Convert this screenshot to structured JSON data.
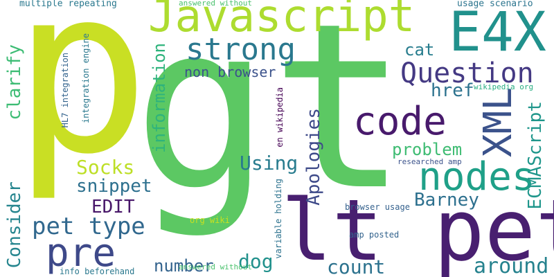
{
  "cloud": {
    "words": [
      {
        "text": "p",
        "color": "#c9df24"
      },
      {
        "text": "gt",
        "color": "#5cc863"
      },
      {
        "text": "lt pet",
        "color": "#481f70"
      },
      {
        "text": "Javascript",
        "color": "#addc30"
      },
      {
        "text": "E4X",
        "color": "#21918c"
      },
      {
        "text": "strong",
        "color": "#2a788e"
      },
      {
        "text": "Question",
        "color": "#443983"
      },
      {
        "text": "code",
        "color": "#481a6c"
      },
      {
        "text": "nodes",
        "color": "#1fa088"
      },
      {
        "text": "pre",
        "color": "#3b528b"
      },
      {
        "text": "XML",
        "color": "#3e4989"
      },
      {
        "text": "pet type",
        "color": "#31688e"
      },
      {
        "text": "around",
        "color": "#26828e"
      },
      {
        "text": "count",
        "color": "#2c728e"
      },
      {
        "text": "number",
        "color": "#33638d"
      },
      {
        "text": "Consider",
        "color": "#25858e"
      },
      {
        "text": "clarify",
        "color": "#3dbc74"
      },
      {
        "text": "information",
        "color": "#2eb37c"
      },
      {
        "text": "Socks",
        "color": "#bddf26"
      },
      {
        "text": "snippet",
        "color": "#2d708e"
      },
      {
        "text": "EDIT",
        "color": "#481769"
      },
      {
        "text": "Using",
        "color": "#287c8e"
      },
      {
        "text": "Apologies",
        "color": "#3e4a89"
      },
      {
        "text": "dog",
        "color": "#21918c"
      },
      {
        "text": "problem",
        "color": "#3fbc73"
      },
      {
        "text": "Barney",
        "color": "#2d708e"
      },
      {
        "text": "ECMAScript",
        "color": "#1f968b"
      },
      {
        "text": "cat",
        "color": "#287d8e"
      },
      {
        "text": "href",
        "color": "#2c728e"
      },
      {
        "text": "non browser",
        "color": "#3b528b"
      },
      {
        "text": "multiple repeating",
        "color": "#2a788e"
      },
      {
        "text": "answered without",
        "color": "#4ac16d"
      },
      {
        "text": "usage scenario",
        "color": "#2b748e"
      },
      {
        "text": "wikipedia org",
        "color": "#27ad81"
      },
      {
        "text": "HL7 integration",
        "color": "#33638d"
      },
      {
        "text": "integration engine",
        "color": "#2a788e"
      },
      {
        "text": "en wikipedia",
        "color": "#440154"
      },
      {
        "text": "researched amp",
        "color": "#3b528b"
      },
      {
        "text": "browser usage",
        "color": "#34618d"
      },
      {
        "text": "variable holding",
        "color": "#2c728e"
      },
      {
        "text": "org wiki",
        "color": "#c8e020"
      },
      {
        "text": "amp posted",
        "color": "#33638d"
      },
      {
        "text": "info beforehand",
        "color": "#2a788e"
      }
    ]
  }
}
